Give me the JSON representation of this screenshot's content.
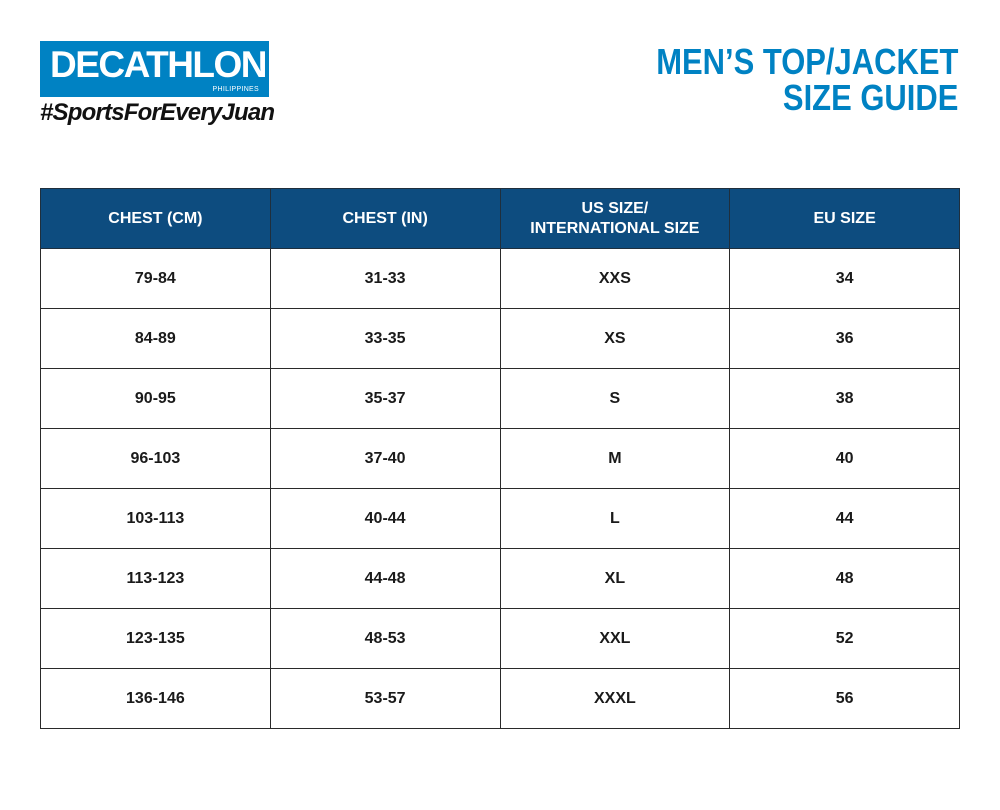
{
  "brand": {
    "logo_text": "DECATHLON",
    "logo_subtext": "PHILIPPINES",
    "hashtag": "#SportsForEveryJuan",
    "brand_color": "#0082c3"
  },
  "title": {
    "line1": "MEN’S TOP/JACKET",
    "line2": "SIZE GUIDE",
    "color": "#0082c3"
  },
  "table": {
    "header_color": "#0d4c7f",
    "headers": [
      "CHEST (CM)",
      "CHEST (IN)",
      "US SIZE/\nINTERNATIONAL SIZE",
      "EU SIZE"
    ],
    "rows": [
      [
        "79-84",
        "31-33",
        "XXS",
        "34"
      ],
      [
        "84-89",
        "33-35",
        "XS",
        "36"
      ],
      [
        "90-95",
        "35-37",
        "S",
        "38"
      ],
      [
        "96-103",
        "37-40",
        "M",
        "40"
      ],
      [
        "103-113",
        "40-44",
        "L",
        "44"
      ],
      [
        "113-123",
        "44-48",
        "XL",
        "48"
      ],
      [
        "123-135",
        "48-53",
        "XXL",
        "52"
      ],
      [
        "136-146",
        "53-57",
        "XXXL",
        "56"
      ]
    ]
  }
}
